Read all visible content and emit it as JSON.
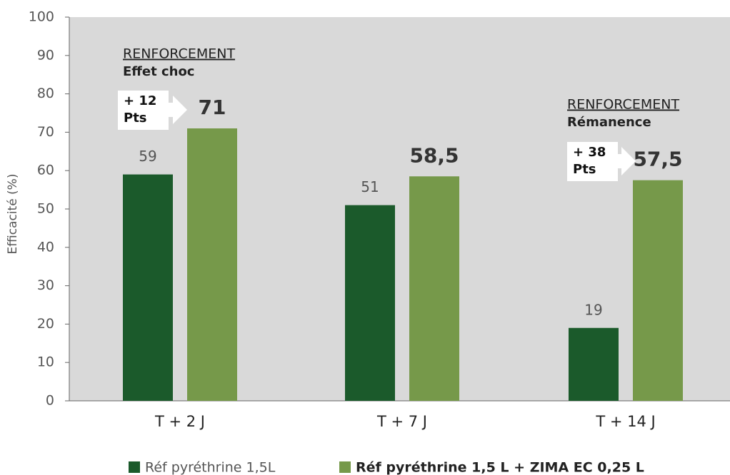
{
  "chart_data": {
    "type": "bar",
    "y_label": "Efficacité (%)",
    "categories": [
      "T + 2 J",
      "T + 7 J",
      "T + 14 J"
    ],
    "series": [
      {
        "name": "Réf pyréthrine 1,5L",
        "color": "#1b5a2b",
        "values": [
          59,
          51,
          19
        ]
      },
      {
        "name": "Réf pyréthrine 1,5 L + ZIMA EC 0,25 L",
        "color": "#76994a",
        "values": [
          71,
          58.5,
          57.5
        ],
        "value_labels": [
          "71",
          "58,5",
          "57,5"
        ]
      }
    ],
    "ylim": [
      0,
      100
    ],
    "yticks": [
      0,
      10,
      20,
      30,
      40,
      50,
      60,
      70,
      80,
      90,
      100
    ],
    "grid": false,
    "annotations": [
      {
        "heading": "RENFORCEMENT",
        "subheading": "Effet choc",
        "badge": [
          "+ 12",
          "Pts"
        ]
      },
      {
        "heading": "RENFORCEMENT",
        "subheading": "Rémanence",
        "badge": [
          "+ 38",
          "Pts"
        ]
      }
    ]
  }
}
